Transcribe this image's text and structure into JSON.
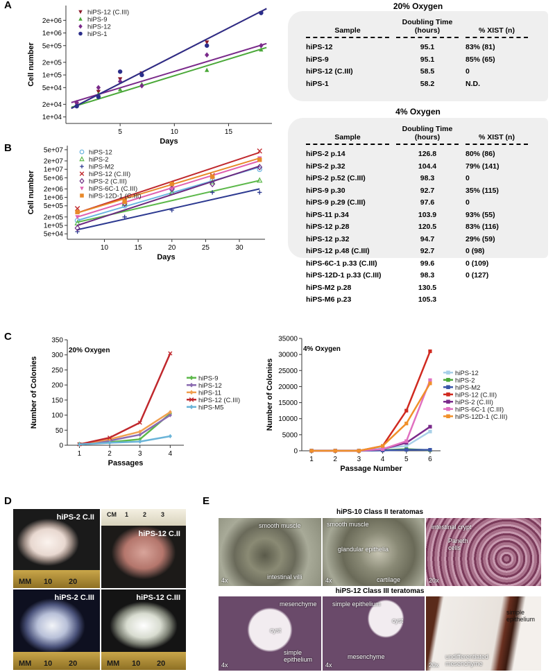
{
  "panel_labels": [
    "A",
    "B",
    "C",
    "D",
    "E"
  ],
  "chart_data": [
    {
      "type": "scatter",
      "log_y": true,
      "x_label": "Days",
      "y_label": "Cell number",
      "xlim": [
        0,
        19
      ],
      "ylim": [
        7000,
        4500000
      ],
      "xticks": [
        5,
        10,
        15
      ],
      "yticks": [
        {
          "value": 10000,
          "label": "1e+04"
        },
        {
          "value": 20000,
          "label": "2e+04"
        },
        {
          "value": 50000,
          "label": "5e+04"
        },
        {
          "value": 100000,
          "label": "1e+05"
        },
        {
          "value": 200000,
          "label": "2e+05"
        },
        {
          "value": 500000,
          "label": "5e+05"
        },
        {
          "value": 1000000,
          "label": "1e+06"
        },
        {
          "value": 2000000,
          "label": "2e+06"
        }
      ],
      "legend": "upper left",
      "x": [
        1,
        3,
        5,
        7,
        13,
        18
      ],
      "fit_x": [
        0.5,
        18.5
      ],
      "series": [
        {
          "name": "hiPS-12 (C.III)",
          "color": "#8b1a2b",
          "marker": "triangle-down",
          "values": [
            20000,
            40000,
            80000,
            110000,
            600000,
            3000000
          ],
          "fit_values": [
            16000,
            3800000
          ]
        },
        {
          "name": "hiPS-9",
          "color": "#4aa838",
          "marker": "triangle",
          "values": [
            20000,
            35000,
            45000,
            60000,
            130000,
            400000
          ],
          "fit_values": [
            17000,
            450000
          ]
        },
        {
          "name": "hiPS-12",
          "color": "#7a2a8a",
          "marker": "diamond",
          "values": [
            22000,
            50000,
            70000,
            55000,
            300000,
            500000
          ],
          "fit_values": [
            22000,
            560000
          ]
        },
        {
          "name": "hiPS-1",
          "color": "#2b2e8a",
          "marker": "circle",
          "values": [
            18000,
            30000,
            120000,
            100000,
            500000,
            3000000
          ],
          "fit_values": [
            16000,
            3800000
          ]
        }
      ]
    },
    {
      "type": "scatter",
      "log_y": true,
      "x_label": "Days",
      "y_label": "Cell number",
      "xlim": [
        4.5,
        33.8
      ],
      "ylim": [
        32000,
        70000000
      ],
      "xticks": [
        10,
        15,
        20,
        25,
        30
      ],
      "yticks": [
        {
          "value": 50000,
          "label": "5e+04"
        },
        {
          "value": 100000,
          "label": "1e+05"
        },
        {
          "value": 200000,
          "label": "2e+05"
        },
        {
          "value": 500000,
          "label": "5e+05"
        },
        {
          "value": 1000000,
          "label": "1e+06"
        },
        {
          "value": 2000000,
          "label": "2e+06"
        },
        {
          "value": 5000000,
          "label": "5e+06"
        },
        {
          "value": 10000000,
          "label": "1e+07"
        },
        {
          "value": 20000000,
          "label": "2e+07"
        },
        {
          "value": 50000000,
          "label": "5e+07"
        }
      ],
      "legend": "upper left",
      "x": [
        6,
        13,
        20,
        26,
        33
      ],
      "fit_x": [
        6,
        33
      ],
      "series": [
        {
          "name": "hiPS-12",
          "color": "#6ab4e0",
          "marker": "circle-open",
          "values": [
            150000,
            500000,
            2000000,
            4000000,
            10000000
          ],
          "fit_values": [
            150000,
            12000000
          ]
        },
        {
          "name": "hiPS-2",
          "color": "#5cb84a",
          "marker": "triangle-open",
          "values": [
            120000,
            600000,
            1500000,
            3500000,
            4000000
          ],
          "fit_values": [
            130000,
            4000000
          ]
        },
        {
          "name": "hiPS-M2",
          "color": "#2c3990",
          "marker": "plus",
          "values": [
            60000,
            200000,
            350000,
            1500000,
            1500000
          ],
          "fit_values": [
            70000,
            2000000
          ]
        },
        {
          "name": "hiPS-12 (C.III)",
          "color": "#c0282d",
          "marker": "x",
          "values": [
            400000,
            800000,
            2500000,
            6000000,
            45000000
          ],
          "fit_values": [
            280000,
            40000000
          ]
        },
        {
          "name": "hiPS-2 (C.III)",
          "color": "#6b2a80",
          "marker": "diamond-open",
          "values": [
            80000,
            600000,
            2000000,
            3000000,
            12000000
          ],
          "fit_values": [
            100000,
            13000000
          ]
        },
        {
          "name": "hiPS-6C-1 (C.III)",
          "color": "#e060b0",
          "marker": "triangle-down",
          "values": [
            200000,
            700000,
            2000000,
            5000000,
            25000000
          ],
          "fit_values": [
            200000,
            20000000
          ]
        },
        {
          "name": "hiPS-12D-1 (C.III)",
          "color": "#e8892a",
          "marker": "square",
          "values": [
            300000,
            700000,
            3000000,
            5500000,
            22000000
          ],
          "fit_values": [
            280000,
            25000000
          ]
        }
      ]
    },
    {
      "type": "line",
      "title": "20% Oxygen",
      "x_label": "Passages",
      "y_label": "Number of Colonies",
      "xlim": [
        0.6,
        4.45
      ],
      "ylim": [
        0,
        350
      ],
      "xticks": [
        1,
        2,
        3,
        4
      ],
      "yticks": [
        0,
        50,
        100,
        150,
        200,
        250,
        300,
        350
      ],
      "legend": "right",
      "x": [
        1,
        2,
        3,
        4
      ],
      "series": [
        {
          "name": "hiPS-9",
          "color": "#5cb84a",
          "marker": "diamond",
          "values": [
            5,
            10,
            20,
            105
          ]
        },
        {
          "name": "hiPS-12",
          "color": "#8a6bb0",
          "marker": "diamond",
          "values": [
            3,
            15,
            35,
            100
          ]
        },
        {
          "name": "hiPS-11",
          "color": "#f0a050",
          "marker": "diamond",
          "values": [
            3,
            20,
            45,
            110
          ]
        },
        {
          "name": "hiPS-12 (C.III)",
          "color": "#c0282d",
          "marker": "x",
          "values": [
            3,
            25,
            75,
            305
          ]
        },
        {
          "name": "hiPS-M5",
          "color": "#6ab4d8",
          "marker": "diamond",
          "values": [
            3,
            8,
            12,
            30
          ]
        }
      ]
    },
    {
      "type": "line",
      "title": "4% Oxygen",
      "x_label": "Passage Number",
      "y_label": "Number of Colonies",
      "xlim": [
        0.59,
        6.44
      ],
      "ylim": [
        0,
        35000
      ],
      "xticks": [
        1,
        2,
        3,
        4,
        5,
        6
      ],
      "yticks": [
        0,
        5000,
        10000,
        15000,
        20000,
        25000,
        30000,
        35000
      ],
      "legend": "right",
      "x": [
        1,
        2,
        3,
        4,
        5,
        6
      ],
      "series": [
        {
          "name": "hiPS-12",
          "color": "#a8d0e8",
          "marker": "square",
          "values": [
            100,
            100,
            100,
            800,
            1500,
            6000
          ]
        },
        {
          "name": "hiPS-2",
          "color": "#4aa838",
          "marker": "square",
          "values": [
            0,
            0,
            0,
            200,
            500,
            200
          ]
        },
        {
          "name": "hiPS-M2",
          "color": "#3a55a8",
          "marker": "square",
          "values": [
            0,
            0,
            0,
            100,
            300,
            300
          ]
        },
        {
          "name": "hiPS-12 (C.III)",
          "color": "#d02a20",
          "marker": "square",
          "values": [
            0,
            0,
            0,
            1500,
            12500,
            31000
          ]
        },
        {
          "name": "hiPS-2 (C.III)",
          "color": "#7a2a8a",
          "marker": "square",
          "values": [
            0,
            0,
            0,
            500,
            2500,
            7500
          ]
        },
        {
          "name": "hiPS-6C-1 (C.III)",
          "color": "#e070c0",
          "marker": "square",
          "values": [
            0,
            0,
            0,
            500,
            3000,
            22000
          ]
        },
        {
          "name": "hiPS-12D-1 (C.III)",
          "color": "#f0902a",
          "marker": "square",
          "values": [
            0,
            0,
            0,
            1500,
            8500,
            21000
          ]
        }
      ]
    }
  ],
  "tables": [
    {
      "title": "20% Oxygen",
      "columns": [
        "Sample",
        "Doubling Time (hours)",
        "% XIST (n)"
      ],
      "rows": [
        [
          "hiPS-12",
          "95.1",
          "83% (81)"
        ],
        [
          "hiPS-9",
          "95.1",
          "85% (65)"
        ],
        [
          "hiPS-12 (C.III)",
          "58.5",
          "0"
        ],
        [
          "hiPS-1",
          "58.2",
          "N.D."
        ]
      ]
    },
    {
      "title": "4% Oxygen",
      "columns": [
        "Sample",
        "Doubling Time (hours)",
        "% XIST (n)"
      ],
      "rows": [
        [
          "hiPS-2 p.14",
          "126.8",
          "80% (86)"
        ],
        [
          "hiPS-2 p.32",
          "104.4",
          "79% (141)"
        ],
        [
          "hiPS-2 p.52 (C.III)",
          "98.3",
          "0"
        ],
        [
          "hiPS-9 p.30",
          "92.7",
          "35% (115)"
        ],
        [
          "hiPS-9 p.29 (C.III)",
          "97.6",
          "0"
        ],
        [
          "hiPS-11 p.34",
          "103.9",
          "93% (55)"
        ],
        [
          "hiPS-12 p.28",
          "120.5",
          "83% (116)"
        ],
        [
          "hiPS-12 p.32",
          "94.7",
          "29% (59)"
        ],
        [
          "hiPS-12 p.48 (C.III)",
          "92.7",
          "0 (98)"
        ],
        [
          "hiPS-6C-1 p.33 (C.III)",
          "99.6",
          "0 (109)"
        ],
        [
          "hiPS-12D-1 p.33 (C.III)",
          "98.3",
          "0 (127)"
        ],
        [
          "hiPS-M2 p.28",
          "130.5"
        ],
        [
          "hiPS-M6 p.23",
          "105.3"
        ]
      ]
    }
  ],
  "tumors": {
    "photos": [
      {
        "label": "hiPS-2 C.II",
        "ruler": [
          "MM",
          "10",
          "20"
        ]
      },
      {
        "label": "hiPS-12 C.II",
        "ruler": [
          "CM",
          "1",
          "2",
          "3"
        ]
      },
      {
        "label": "hiPS-2 C.III",
        "ruler": [
          "MM",
          "10",
          "20"
        ]
      },
      {
        "label": "hiPS-12 C.III",
        "ruler": [
          "MM",
          "10",
          "20"
        ]
      }
    ]
  },
  "histology": {
    "panels": [
      {
        "title": "hiPS-10 Class II teratomas",
        "images": [
          {
            "magnification": "4x",
            "annotations": [
              "smooth muscle",
              "intestinal villi"
            ]
          },
          {
            "magnification": "4x",
            "annotations": [
              "smooth muscle",
              "glandular epithelia",
              "cartilage"
            ]
          },
          {
            "magnification": "20x",
            "annotations": [
              "intestinal crypt",
              "Paneth cells"
            ]
          }
        ]
      },
      {
        "title": "hiPS-12 Class III teratomas",
        "images": [
          {
            "magnification": "4x",
            "annotations": [
              "mesenchyme",
              "cyst",
              "simple epithelium"
            ]
          },
          {
            "magnification": "4x",
            "annotations": [
              "simple epithelium",
              "cyst",
              "mesenchyme"
            ]
          },
          {
            "magnification": "20x",
            "annotations": [
              "simple epithelium",
              "undifferentiated mesenchyme"
            ]
          }
        ]
      }
    ]
  }
}
